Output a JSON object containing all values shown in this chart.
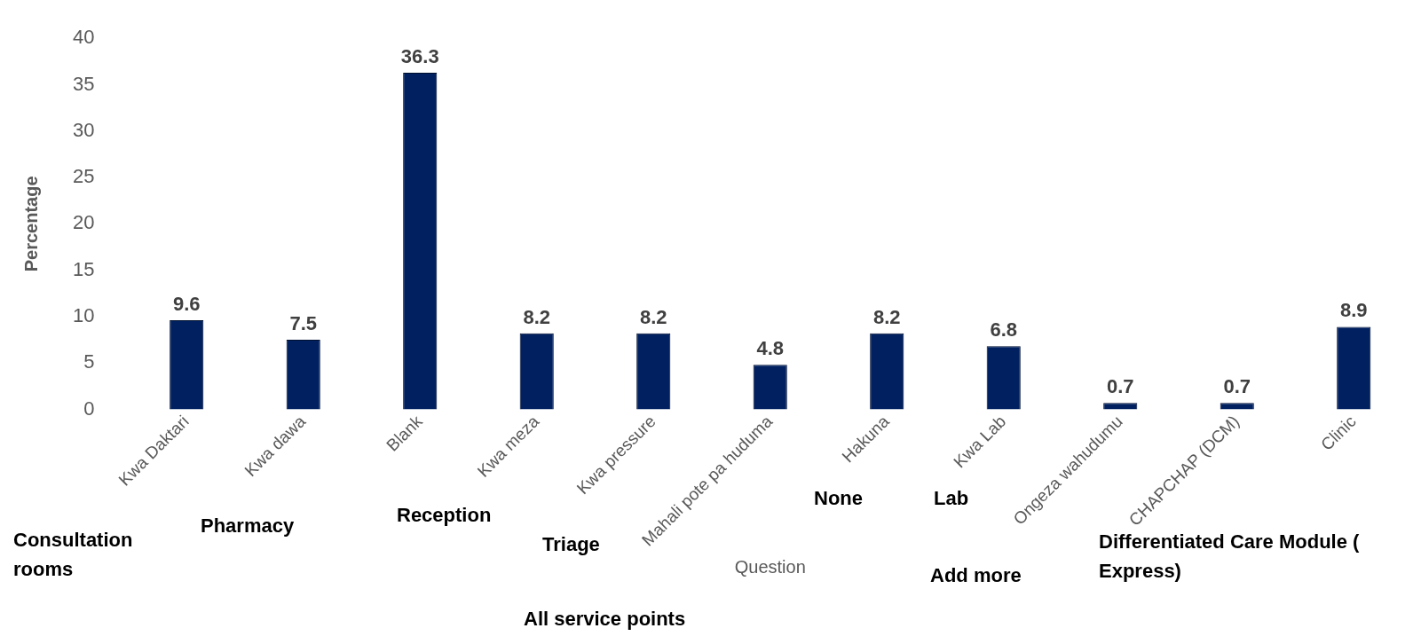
{
  "chart_data": {
    "type": "bar",
    "xlabel": "Question",
    "ylabel": "Percentage",
    "categories": [
      "Kwa Daktari",
      "Kwa dawa",
      "Blank",
      "Kwa meza",
      "Kwa pressure",
      "Mahali pote pa huduma",
      "Hakuna",
      "Kwa Lab",
      "Ongeza wahudumu",
      "CHAPCHAP (DCM)",
      "Clinic"
    ],
    "values": [
      9.6,
      7.5,
      36.3,
      8.2,
      8.2,
      4.8,
      8.2,
      6.8,
      0.7,
      0.7,
      8.9
    ],
    "color": "#002060",
    "ylim": [
      0,
      40
    ],
    "yticks": [
      0,
      5,
      10,
      15,
      20,
      25,
      30,
      35,
      40
    ],
    "grid": false,
    "legend": false,
    "data_labels": true,
    "annotations": [
      "Consultation rooms",
      "Pharmacy",
      "Reception",
      "Triage",
      "All service points",
      "None",
      "Lab",
      "Add more",
      "Differentiated Care Module ( Express)"
    ]
  }
}
